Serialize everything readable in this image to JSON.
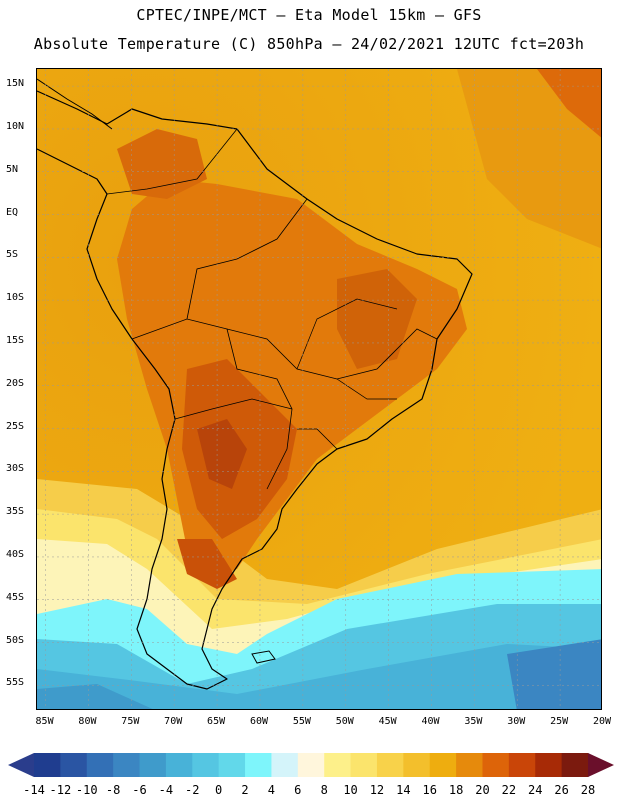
{
  "title": {
    "line1": "CPTEC/INPE/MCT –  Eta Model 15km – GFS",
    "line2": "Absolute Temperature (C) 850hPa – 24/02/2021 12UTC fct=203h"
  },
  "map": {
    "lat_labels": [
      "15N",
      "10N",
      "5N",
      "EQ",
      "5S",
      "10S",
      "15S",
      "20S",
      "25S",
      "30S",
      "35S",
      "40S",
      "45S",
      "50S",
      "55S"
    ],
    "lon_labels": [
      "85W",
      "80W",
      "75W",
      "70W",
      "65W",
      "60W",
      "55W",
      "50W",
      "45W",
      "40W",
      "35W",
      "30W",
      "25W",
      "20W"
    ],
    "grid": true,
    "projection": "lat-lon",
    "lat_range": [
      17,
      -58
    ],
    "lon_range": [
      -86,
      -20
    ]
  },
  "colorbar": {
    "labels": [
      "-14",
      "-12",
      "-10",
      "-8",
      "-6",
      "-4",
      "-2",
      "0",
      "2",
      "4",
      "6",
      "8",
      "10",
      "12",
      "14",
      "16",
      "18",
      "20",
      "22",
      "24",
      "26",
      "28"
    ],
    "colors": [
      "#1f3d8f",
      "#2a55a3",
      "#3370b6",
      "#3b86c2",
      "#3f9bcb",
      "#48b2d8",
      "#55c6e2",
      "#62d8ea",
      "#7ef5fb",
      "#d4f4fa",
      "#fff6dc",
      "#fdf08a",
      "#fbe46c",
      "#f8d24a",
      "#f3bf2c",
      "#eead0f",
      "#e68a0c",
      "#dd6409",
      "#c94508",
      "#a72a06",
      "#7b1a0e"
    ],
    "left_arrow_color": "#2a3d8c",
    "right_arrow_color": "#6a0f2b"
  }
}
